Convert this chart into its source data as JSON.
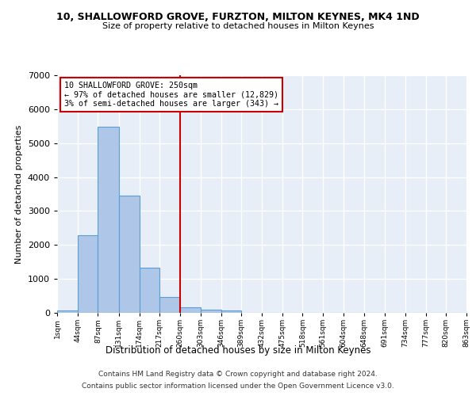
{
  "title1": "10, SHALLOWFORD GROVE, FURZTON, MILTON KEYNES, MK4 1ND",
  "title2": "Size of property relative to detached houses in Milton Keynes",
  "xlabel": "Distribution of detached houses by size in Milton Keynes",
  "ylabel": "Number of detached properties",
  "footnote1": "Contains HM Land Registry data © Crown copyright and database right 2024.",
  "footnote2": "Contains public sector information licensed under the Open Government Licence v3.0.",
  "bin_labels": [
    "1sqm",
    "44sqm",
    "87sqm",
    "131sqm",
    "174sqm",
    "217sqm",
    "260sqm",
    "303sqm",
    "346sqm",
    "389sqm",
    "432sqm",
    "475sqm",
    "518sqm",
    "561sqm",
    "604sqm",
    "648sqm",
    "691sqm",
    "734sqm",
    "777sqm",
    "820sqm",
    "863sqm"
  ],
  "bar_values": [
    75,
    2280,
    5480,
    3450,
    1320,
    470,
    155,
    100,
    60,
    0,
    0,
    0,
    0,
    0,
    0,
    0,
    0,
    0,
    0,
    0
  ],
  "bar_color": "#aec6e8",
  "bar_edge_color": "#5a9fd4",
  "background_color": "#e8eef8",
  "grid_color": "#ffffff",
  "vline_color": "#cc0000",
  "annotation_box_text": [
    "10 SHALLOWFORD GROVE: 250sqm",
    "← 97% of detached houses are smaller (12,829)",
    "3% of semi-detached houses are larger (343) →"
  ],
  "ylim": [
    0,
    7000
  ],
  "bin_edges": [
    1,
    44,
    87,
    131,
    174,
    217,
    260,
    303,
    346,
    389,
    432,
    475,
    518,
    561,
    604,
    648,
    691,
    734,
    777,
    820,
    863
  ]
}
